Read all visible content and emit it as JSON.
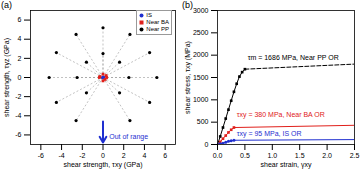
{
  "chart_data": [
    {
      "type": "scatter",
      "title": "(a)",
      "x_label": "shear strength, τxy (GPa)",
      "y_label": "shear strength, τyz (GPa)",
      "xlim": [
        -7,
        7
      ],
      "ylim": [
        -7,
        7
      ],
      "xticks": [
        -6,
        -4,
        -2,
        0,
        2,
        4,
        6
      ],
      "yticks": [
        -6,
        -4,
        -2,
        0,
        2,
        4,
        6
      ],
      "legend": "top-right",
      "series": [
        {
          "name": "IS",
          "color": "#1f2fd0",
          "marker": "circle",
          "x": [
            0.05,
            -0.05,
            0,
            0.08
          ],
          "y": [
            0.05,
            0,
            -0.05,
            -0.03
          ]
        },
        {
          "name": "Near BA",
          "color": "#e0201b",
          "marker": "square",
          "x": [
            0.3,
            0.2,
            -0.3,
            0,
            0,
            0.35,
            -0.35
          ],
          "y": [
            0.2,
            -0.2,
            0.1,
            0.35,
            -0.35,
            0,
            0
          ]
        },
        {
          "name": "Near PP",
          "color": "#000000",
          "marker": "circle",
          "x": [
            0,
            2.6,
            4.5,
            5.2,
            4.5,
            2.6,
            -2.6,
            -4.5,
            -5.2,
            -4.5,
            -2.6,
            0,
            1.6,
            -1.6,
            2.5,
            -2.5,
            1.6,
            -1.6
          ],
          "y": [
            5.2,
            4.5,
            2.6,
            0,
            -2.6,
            -4.5,
            -4.5,
            -2.6,
            0,
            2.6,
            4.5,
            2.5,
            1.6,
            1.6,
            0,
            0,
            -1.6,
            -1.6
          ]
        }
      ],
      "annotations": [
        {
          "text": "Out of range",
          "x": 0.6,
          "y": -6.2,
          "color": "#1f2fd0",
          "arrow": {
            "x": 0,
            "y1": -4.6,
            "y2": -6.8
          }
        }
      ]
    },
    {
      "type": "line",
      "title": "(b)",
      "x_label": "shear strain, γxy",
      "y_label": "shear stress, τxy (MPa)",
      "xlim": [
        0,
        2.5
      ],
      "ylim": [
        0,
        3000
      ],
      "xticks": [
        {
          "value": 0,
          "label": "0.0"
        },
        {
          "value": 0.5,
          "label": "0.5"
        },
        {
          "value": 1,
          "label": "1.0"
        },
        {
          "value": 1.5,
          "label": "1.5"
        },
        {
          "value": 2,
          "label": "2.0"
        },
        {
          "value": 2.5,
          "label": "2.5"
        }
      ],
      "yticks": [
        0,
        500,
        1000,
        1500,
        2000,
        2500,
        3000
      ],
      "series": [
        {
          "color": "#000000",
          "marker": "square",
          "line_style": "solid",
          "x": [
            0,
            0.05,
            0.1,
            0.15,
            0.2,
            0.25,
            0.3,
            0.35,
            0.4,
            0.45,
            0.5
          ],
          "y": [
            0,
            180,
            380,
            580,
            780,
            980,
            1180,
            1360,
            1520,
            1620,
            1686
          ]
        },
        {
          "color": "#000000",
          "line_style": "dashed",
          "x": [
            0.5,
            2.5
          ],
          "y": [
            1686,
            1800
          ]
        },
        {
          "color": "#e0201b",
          "marker": "square",
          "line_style": "solid",
          "x": [
            0,
            0.05,
            0.1,
            0.15,
            0.2,
            0.25,
            0.3
          ],
          "y": [
            0,
            60,
            130,
            200,
            270,
            330,
            380
          ]
        },
        {
          "color": "#e0201b",
          "line_style": "solid",
          "x": [
            0.3,
            2.5
          ],
          "y": [
            380,
            430
          ]
        },
        {
          "color": "#1f2fd0",
          "marker": "circle",
          "line_style": "solid",
          "x": [
            0,
            0.05,
            0.1,
            0.15,
            0.2,
            0.25,
            0.3
          ],
          "y": [
            0,
            15,
            30,
            50,
            70,
            85,
            95
          ]
        },
        {
          "color": "#1f2fd0",
          "line_style": "solid",
          "x": [
            0.3,
            2.5
          ],
          "y": [
            95,
            110
          ]
        }
      ],
      "annotations": [
        {
          "text": "τm = 1686 MPa, Near PP OR",
          "x": 0.55,
          "y": 1900,
          "color": "#000000"
        },
        {
          "text": "τxy = 380 MPa, Near BA OR",
          "x": 0.35,
          "y": 620,
          "color": "#e0201b"
        },
        {
          "text": "τxy = 95 MPa, IS OR",
          "x": 0.35,
          "y": 230,
          "color": "#1f2fd0"
        }
      ]
    }
  ]
}
